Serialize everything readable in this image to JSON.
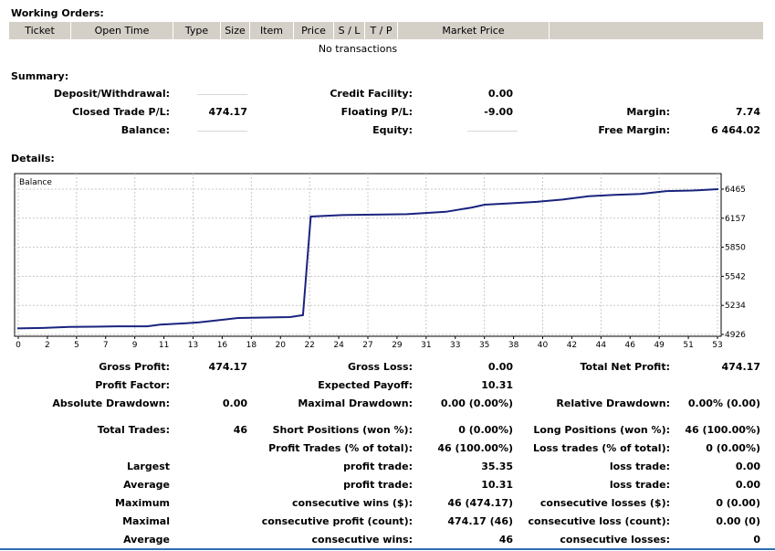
{
  "working_orders": {
    "title": "Working Orders:",
    "columns": [
      "Ticket",
      "Open Time",
      "Type",
      "Size",
      "Item",
      "Price",
      "S / L",
      "T / P",
      "Market Price",
      ""
    ],
    "empty_text": "No transactions"
  },
  "summary": {
    "title": "Summary:",
    "deposit_label": "Deposit/Withdrawal:",
    "deposit_value": "",
    "credit_label": "Credit Facility:",
    "credit_value": "0.00",
    "closed_pl_label": "Closed Trade P/L:",
    "closed_pl_value": "474.17",
    "floating_pl_label": "Floating P/L:",
    "floating_pl_value": "-9.00",
    "margin_label": "Margin:",
    "margin_value": "7.74",
    "balance_label": "Balance:",
    "balance_value": "",
    "equity_label": "Equity:",
    "equity_value": "",
    "free_margin_label": "Free Margin:",
    "free_margin_value": "6 464.02"
  },
  "details": {
    "title": "Details:"
  },
  "chart_data": {
    "type": "line",
    "series_label": "Balance",
    "x_ticks": [
      "0",
      "2",
      "5",
      "7",
      "9",
      "11",
      "13",
      "16",
      "18",
      "20",
      "22",
      "24",
      "27",
      "29",
      "31",
      "33",
      "35",
      "38",
      "40",
      "42",
      "44",
      "46",
      "49",
      "51",
      "53"
    ],
    "y_ticks": [
      "6465",
      "6157",
      "5850",
      "5542",
      "5234",
      "4926"
    ],
    "ylim": [
      4926,
      6465
    ],
    "xlim": [
      0,
      54
    ],
    "grid": true,
    "series": [
      {
        "values": [
          [
            0,
            4990
          ],
          [
            2,
            4995
          ],
          [
            4,
            5005
          ],
          [
            6,
            5008
          ],
          [
            8,
            5012
          ],
          [
            10,
            5012
          ],
          [
            11,
            5030
          ],
          [
            13,
            5045
          ],
          [
            14,
            5055
          ],
          [
            16,
            5085
          ],
          [
            17,
            5100
          ],
          [
            19,
            5105
          ],
          [
            21,
            5110
          ],
          [
            22,
            5130
          ],
          [
            22.6,
            6175
          ],
          [
            25,
            6190
          ],
          [
            30,
            6200
          ],
          [
            33,
            6225
          ],
          [
            35,
            6270
          ],
          [
            36,
            6300
          ],
          [
            38,
            6315
          ],
          [
            40,
            6330
          ],
          [
            42,
            6355
          ],
          [
            44,
            6390
          ],
          [
            46,
            6405
          ],
          [
            48,
            6415
          ],
          [
            50,
            6445
          ],
          [
            52,
            6450
          ],
          [
            54,
            6465
          ]
        ]
      }
    ],
    "line_color": "#1a237e"
  },
  "stats": {
    "gross_profit_label": "Gross Profit:",
    "gross_profit_value": "474.17",
    "gross_loss_label": "Gross Loss:",
    "gross_loss_value": "0.00",
    "total_net_label": "Total Net Profit:",
    "total_net_value": "474.17",
    "profit_factor_label": "Profit Factor:",
    "profit_factor_value": "",
    "expected_payoff_label": "Expected Payoff:",
    "expected_payoff_value": "10.31",
    "abs_dd_label": "Absolute Drawdown:",
    "abs_dd_value": "0.00",
    "max_dd_label": "Maximal Drawdown:",
    "max_dd_value": "0.00 (0.00%)",
    "rel_dd_label": "Relative Drawdown:",
    "rel_dd_value": "0.00% (0.00)",
    "total_trades_label": "Total Trades:",
    "total_trades_value": "46",
    "short_pos_label": "Short Positions (won %):",
    "short_pos_value": "0 (0.00%)",
    "long_pos_label": "Long Positions (won %):",
    "long_pos_value": "46 (100.00%)",
    "profit_trades_label": "Profit Trades (% of total):",
    "profit_trades_value": "46 (100.00%)",
    "loss_trades_label": "Loss trades (% of total):",
    "loss_trades_value": "0 (0.00%)",
    "largest_label": "Largest",
    "largest_profit_label": "profit trade:",
    "largest_profit_value": "35.35",
    "largest_loss_label": "loss trade:",
    "largest_loss_value": "0.00",
    "average_label": "Average",
    "average_profit_label": "profit trade:",
    "average_profit_value": "10.31",
    "average_loss_label": "loss trade:",
    "average_loss_value": "0.00",
    "maximum_label": "Maximum",
    "max_cons_wins_label": "consecutive wins ($):",
    "max_cons_wins_value": "46 (474.17)",
    "max_cons_losses_label": "consecutive losses ($):",
    "max_cons_losses_value": "0 (0.00)",
    "maximal_label": "Maximal",
    "maximal_profit_label": "consecutive profit (count):",
    "maximal_profit_value": "474.17 (46)",
    "maximal_loss_label": "consecutive loss (count):",
    "maximal_loss_value": "0.00 (0)",
    "average2_label": "Average",
    "avg_cons_wins_label": "consecutive wins:",
    "avg_cons_wins_value": "46",
    "avg_cons_losses_label": "consecutive losses:",
    "avg_cons_losses_value": "0"
  }
}
